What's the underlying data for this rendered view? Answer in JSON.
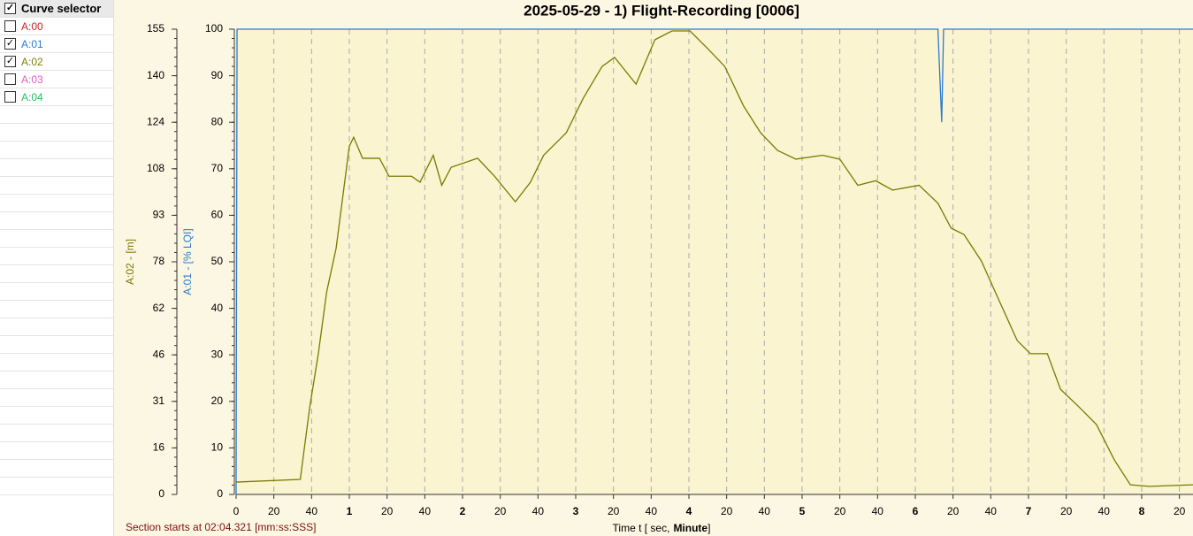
{
  "sidebar": {
    "title": "Curve selector",
    "title_checked": true,
    "items": [
      {
        "label": "A:00",
        "color": "#d02020",
        "checked": false
      },
      {
        "label": "A:01",
        "color": "#2a7ad0",
        "checked": true
      },
      {
        "label": "A:02",
        "color": "#808000",
        "checked": true
      },
      {
        "label": "A:03",
        "color": "#e060c0",
        "checked": false
      },
      {
        "label": "A:04",
        "color": "#20c060",
        "checked": false
      }
    ]
  },
  "chart_data": {
    "type": "line",
    "title": "2025-05-29 - 1) Flight-Recording [0006]",
    "ylabel": "A:02  -  [m]",
    "y2label": "A:01  -  [% LQI]",
    "x_label": {
      "prefix": "Time   t   [ sec,",
      "bold": "Minute",
      "suffix": "]"
    },
    "note": "Section starts at  02:04.321 [mm:ss:SSS]",
    "xlim": [
      0,
      507.2
    ],
    "ylim": [
      0,
      155
    ],
    "y2lim": [
      0,
      100
    ],
    "xticks": [
      0,
      20,
      40,
      {
        "value": 60,
        "label": "1"
      },
      {
        "value": 80,
        "label": "20"
      },
      {
        "value": 100,
        "label": "40"
      },
      {
        "value": 120,
        "label": "2"
      },
      {
        "value": 140,
        "label": "20"
      },
      {
        "value": 160,
        "label": "40"
      },
      {
        "value": 180,
        "label": "3"
      },
      {
        "value": 200,
        "label": "20"
      },
      {
        "value": 220,
        "label": "40"
      },
      {
        "value": 240,
        "label": "4"
      },
      {
        "value": 260,
        "label": "20"
      },
      {
        "value": 280,
        "label": "40"
      },
      {
        "value": 300,
        "label": "5"
      },
      {
        "value": 320,
        "label": "20"
      },
      {
        "value": 340,
        "label": "40"
      },
      {
        "value": 360,
        "label": "6"
      },
      {
        "value": 380,
        "label": "20"
      },
      {
        "value": 400,
        "label": "40"
      },
      {
        "value": 420,
        "label": "7"
      },
      {
        "value": 440,
        "label": "20"
      },
      {
        "value": 460,
        "label": "40"
      },
      {
        "value": 480,
        "label": "8"
      },
      {
        "value": 500,
        "label": "20"
      }
    ],
    "yticks": [
      0,
      {
        "value": 15.5,
        "label": "16"
      },
      31,
      {
        "value": 46.5,
        "label": "46"
      },
      62,
      {
        "value": 77.5,
        "label": "78"
      },
      93,
      {
        "value": 108.5,
        "label": "108"
      },
      124,
      {
        "value": 139.5,
        "label": "140"
      },
      155
    ],
    "y2ticks": [
      0,
      10,
      20,
      30,
      40,
      50,
      60,
      70,
      80,
      90,
      100
    ],
    "grid": true,
    "series": [
      {
        "name": "A:01",
        "color": "#2a7ad0",
        "axis": "y2",
        "x": [
          0,
          0.5,
          372,
          373,
          374,
          375,
          507.2
        ],
        "values": [
          0,
          100,
          100,
          90,
          80,
          100,
          100
        ]
      },
      {
        "name": "A:02",
        "color": "#7a7a00",
        "x": [
          0,
          34,
          39,
          43.6,
          48,
          53,
          56.7,
          60,
          62.3,
          67,
          76,
          81,
          93,
          97.5,
          104.5,
          109,
          114,
          128,
          137,
          148,
          156,
          163,
          175,
          184,
          194,
          200.6,
          212,
          222,
          231,
          240.6,
          250,
          259,
          269,
          278,
          287,
          296.7,
          310.8,
          320,
          329.5,
          339,
          348,
          362,
          372,
          379,
          385.8,
          395,
          404.5,
          414,
          421,
          430,
          437,
          446.7,
          456,
          465.5,
          474,
          484,
          507.2
        ],
        "values": [
          4.1,
          5,
          29,
          47,
          67.5,
          82,
          100,
          116,
          119,
          112,
          112,
          106,
          106,
          104,
          113,
          103,
          109,
          112,
          106,
          97.5,
          104,
          113,
          120.5,
          132,
          142.6,
          145.6,
          136.7,
          151.5,
          154.4,
          154.4,
          148.5,
          142.6,
          129.4,
          120.5,
          114.6,
          111.7,
          113,
          111.7,
          103,
          104.5,
          101.4,
          103,
          97,
          88.7,
          86.6,
          77.8,
          64.5,
          51.3,
          46.9,
          46.9,
          35,
          29.2,
          23.3,
          11.5,
          3.2,
          2.7,
          3.2
        ]
      }
    ]
  }
}
